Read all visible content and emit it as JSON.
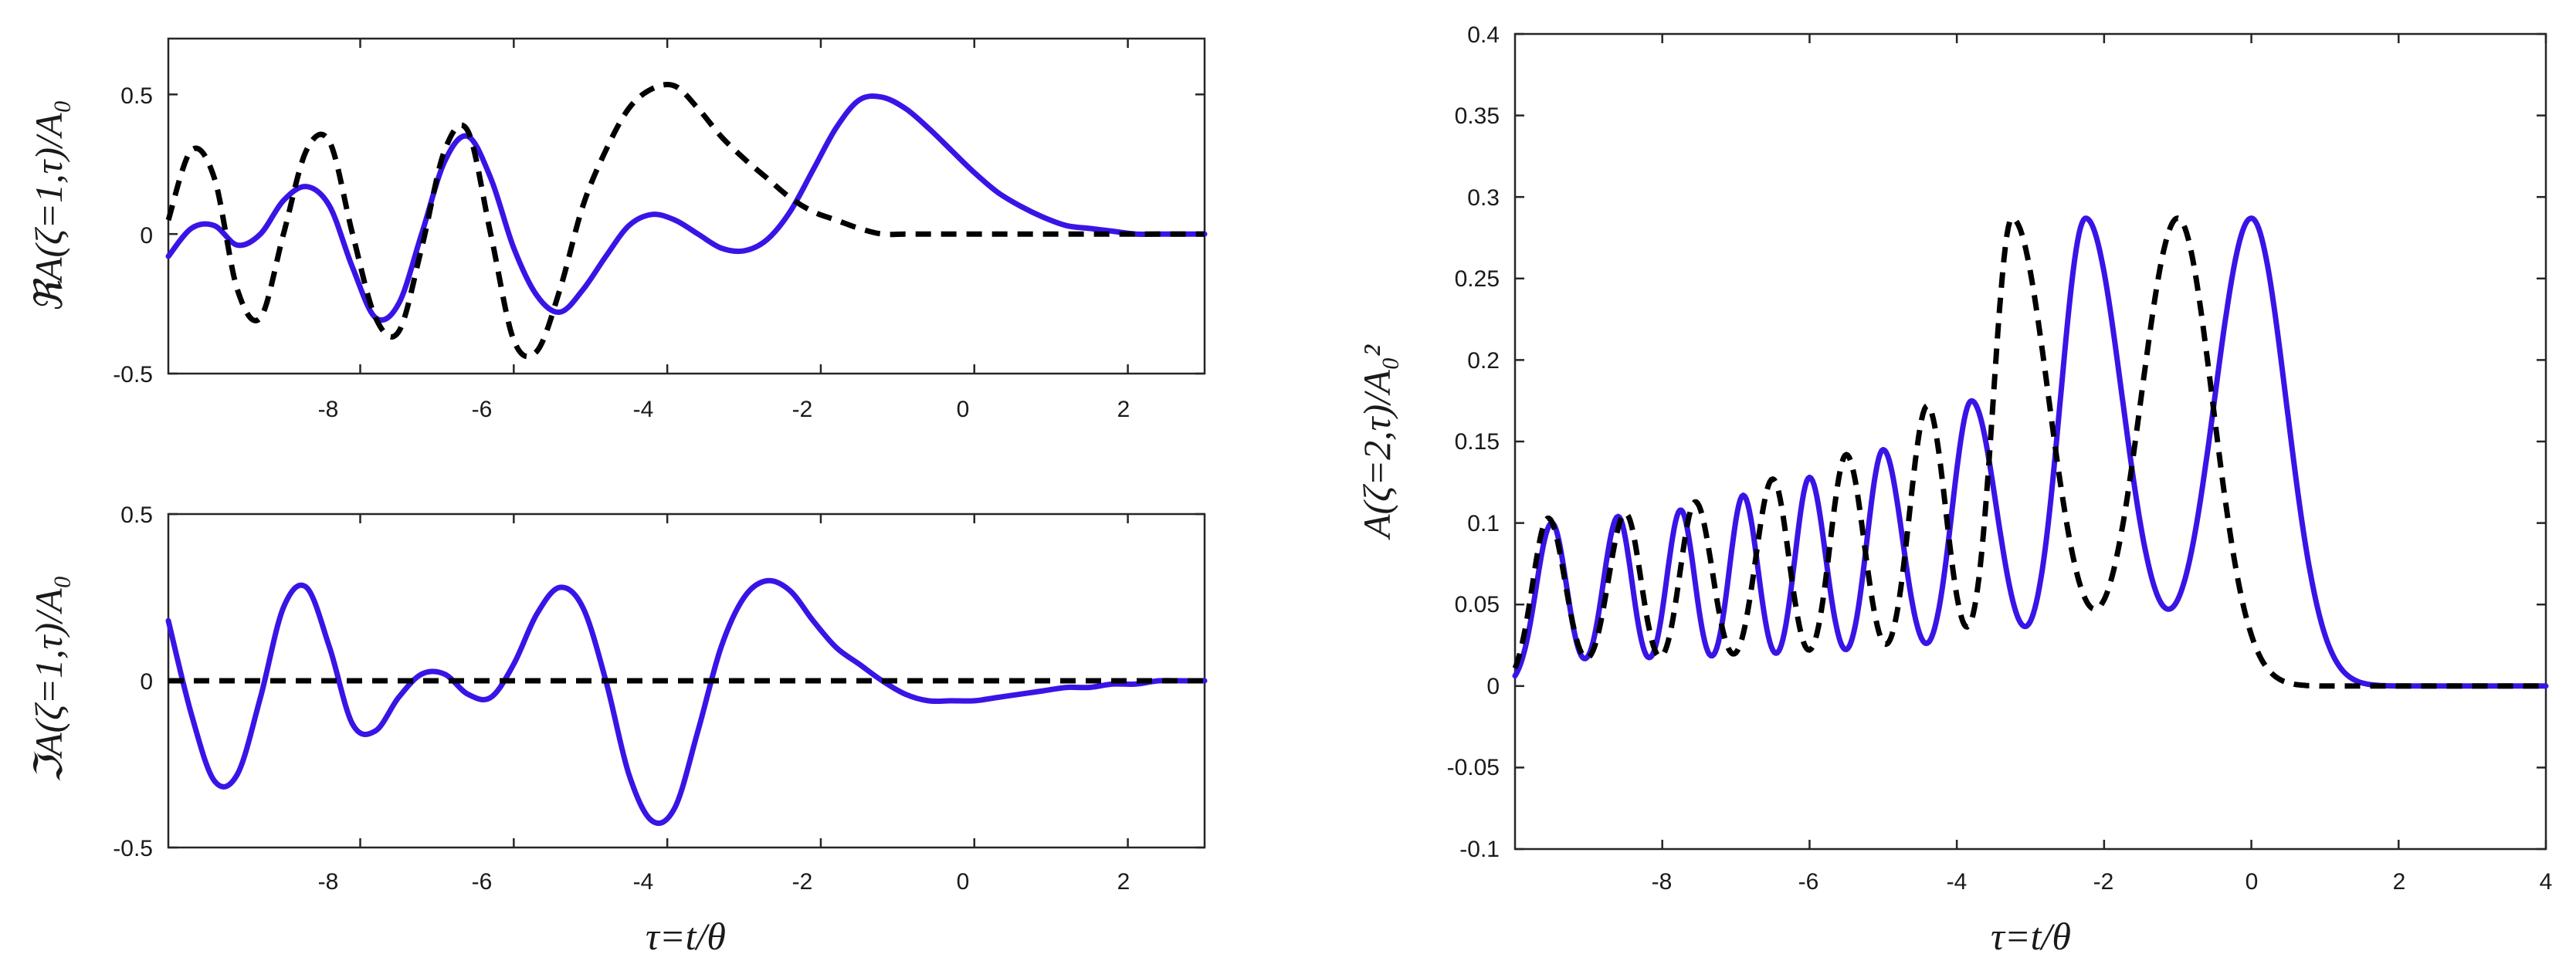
{
  "colors": {
    "solid_series": "#3a14e6",
    "dashed_series": "#000000",
    "axes": "#262626"
  },
  "chart_data": [
    {
      "id": "re",
      "type": "line",
      "ylabel": "ℜA(ζ=1,τ)/A₀",
      "xlabel": "",
      "xlim": [
        -10.5,
        3
      ],
      "ylim": [
        -0.5,
        0.7
      ],
      "xticks": [
        -8,
        -6,
        -4,
        -2,
        0,
        2
      ],
      "xtick_labels": [
        "-8",
        "-6",
        "-4",
        "-2",
        "0",
        "2"
      ],
      "yticks": [
        -0.5,
        0,
        0.5
      ],
      "ytick_labels": [
        "-0.5",
        "0",
        "0.5"
      ],
      "grid": false,
      "series": [
        {
          "style": "solid",
          "color": "#3a14e6",
          "x": [
            -10.5,
            -10.2,
            -9.9,
            -9.6,
            -9.3,
            -9.0,
            -8.7,
            -8.4,
            -8.1,
            -7.8,
            -7.5,
            -7.2,
            -6.9,
            -6.6,
            -6.3,
            -6.0,
            -5.7,
            -5.4,
            -5.1,
            -4.8,
            -4.5,
            -4.2,
            -3.9,
            -3.6,
            -3.3,
            -3.0,
            -2.7,
            -2.4,
            -2.1,
            -1.8,
            -1.5,
            -1.2,
            -0.9,
            -0.6,
            -0.3,
            0.0,
            0.3,
            0.6,
            0.9,
            1.2,
            1.5,
            1.8,
            2.1,
            2.4,
            2.7,
            3.0
          ],
          "y": [
            -0.08,
            0.02,
            0.03,
            -0.04,
            0.0,
            0.12,
            0.17,
            0.1,
            -0.12,
            -0.3,
            -0.25,
            0.0,
            0.26,
            0.35,
            0.2,
            -0.05,
            -0.22,
            -0.28,
            -0.2,
            -0.08,
            0.03,
            0.07,
            0.05,
            0.0,
            -0.05,
            -0.06,
            -0.02,
            0.08,
            0.23,
            0.38,
            0.48,
            0.49,
            0.45,
            0.38,
            0.3,
            0.22,
            0.15,
            0.1,
            0.06,
            0.03,
            0.02,
            0.01,
            0.0,
            0.0,
            0.0,
            0.0
          ]
        },
        {
          "style": "dashed",
          "color": "#000000",
          "x": [
            -10.5,
            -10.2,
            -9.9,
            -9.6,
            -9.3,
            -9.0,
            -8.7,
            -8.4,
            -8.1,
            -7.8,
            -7.5,
            -7.2,
            -6.9,
            -6.6,
            -6.3,
            -6.0,
            -5.7,
            -5.4,
            -5.1,
            -4.8,
            -4.5,
            -4.2,
            -3.9,
            -3.6,
            -3.3,
            -3.0,
            -2.7,
            -2.4,
            -2.1,
            -1.8,
            -1.5,
            -1.2,
            -0.9,
            -0.6,
            -0.3,
            0.0,
            0.3,
            0.6,
            0.9,
            1.2,
            1.5,
            1.8,
            2.1,
            2.4,
            2.7,
            3.0
          ],
          "y": [
            0.05,
            0.3,
            0.2,
            -0.2,
            -0.3,
            0.0,
            0.3,
            0.33,
            0.0,
            -0.3,
            -0.35,
            -0.05,
            0.3,
            0.37,
            0.0,
            -0.38,
            -0.42,
            -0.2,
            0.1,
            0.3,
            0.45,
            0.52,
            0.53,
            0.45,
            0.35,
            0.27,
            0.2,
            0.13,
            0.08,
            0.05,
            0.02,
            0.0,
            0.0,
            0.0,
            0.0,
            0.0,
            0.0,
            0.0,
            0.0,
            0.0,
            0.0,
            0.0,
            0.0,
            0.0,
            0.0,
            0.0
          ]
        }
      ]
    },
    {
      "id": "im",
      "type": "line",
      "ylabel": "ℑA(ζ=1,τ)/A₀",
      "xlabel": "τ=t/θ",
      "xlim": [
        -10.5,
        3
      ],
      "ylim": [
        -0.5,
        0.5
      ],
      "xticks": [
        -8,
        -6,
        -4,
        -2,
        0,
        2
      ],
      "xtick_labels": [
        "-8",
        "-6",
        "-4",
        "-2",
        "0",
        "2"
      ],
      "yticks": [
        -0.5,
        0,
        0.5
      ],
      "ytick_labels": [
        "-0.5",
        "0",
        "0.5"
      ],
      "grid": false,
      "series": [
        {
          "style": "solid",
          "color": "#3a14e6",
          "x": [
            -10.5,
            -10.2,
            -9.9,
            -9.6,
            -9.3,
            -9.0,
            -8.7,
            -8.4,
            -8.1,
            -7.8,
            -7.5,
            -7.2,
            -6.9,
            -6.6,
            -6.3,
            -6.0,
            -5.7,
            -5.4,
            -5.1,
            -4.8,
            -4.5,
            -4.2,
            -3.9,
            -3.6,
            -3.3,
            -3.0,
            -2.7,
            -2.4,
            -2.1,
            -1.8,
            -1.5,
            -1.2,
            -0.9,
            -0.6,
            -0.3,
            0.0,
            0.3,
            0.6,
            0.9,
            1.2,
            1.5,
            1.8,
            2.1,
            2.4,
            2.7,
            3.0
          ],
          "y": [
            0.18,
            -0.1,
            -0.3,
            -0.28,
            -0.05,
            0.22,
            0.28,
            0.1,
            -0.13,
            -0.15,
            -0.05,
            0.02,
            0.02,
            -0.04,
            -0.05,
            0.05,
            0.2,
            0.28,
            0.22,
            0.0,
            -0.28,
            -0.42,
            -0.38,
            -0.15,
            0.1,
            0.25,
            0.3,
            0.27,
            0.18,
            0.1,
            0.05,
            0.0,
            -0.04,
            -0.06,
            -0.06,
            -0.06,
            -0.05,
            -0.04,
            -0.03,
            -0.02,
            -0.02,
            -0.01,
            -0.01,
            0.0,
            0.0,
            0.0
          ]
        },
        {
          "style": "dashed",
          "color": "#000000",
          "x": [
            -10.5,
            3.0
          ],
          "y": [
            0,
            0
          ]
        }
      ]
    },
    {
      "id": "intensity",
      "type": "line",
      "ylabel": "A(ζ=2,τ)/A₀²",
      "xlabel": "τ=t/θ",
      "xlim": [
        -10,
        4
      ],
      "ylim": [
        -0.1,
        0.4
      ],
      "xticks": [
        -8,
        -6,
        -4,
        -2,
        0,
        2,
        4
      ],
      "xtick_labels": [
        "-8",
        "-6",
        "-4",
        "-2",
        "0",
        "2",
        "4"
      ],
      "yticks": [
        -0.1,
        -0.05,
        0,
        0.05,
        0.1,
        0.15,
        0.2,
        0.25,
        0.3,
        0.35,
        0.4
      ],
      "ytick_labels": [
        "-0.1",
        "-0.05",
        "0",
        "0.05",
        "0.1",
        "0.15",
        "0.2",
        "0.25",
        "0.3",
        "0.35",
        "0.4"
      ],
      "grid": false,
      "series": [
        {
          "style": "solid",
          "color": "#3a14e6",
          "peaks": [
            -9.5,
            -8.6,
            -7.75,
            -6.9,
            -6.0,
            -5.0,
            -3.8,
            -2.25,
            0.0
          ],
          "heights": [
            0.1,
            0.104,
            0.108,
            0.117,
            0.128,
            0.145,
            0.175,
            0.287,
            0.287
          ]
        },
        {
          "style": "dashed",
          "color": "#000000",
          "peaks": [
            -9.55,
            -8.5,
            -7.55,
            -6.5,
            -5.5,
            -4.4,
            -3.25,
            -1.0
          ],
          "heights": [
            0.103,
            0.106,
            0.113,
            0.127,
            0.142,
            0.172,
            0.287,
            0.287
          ]
        }
      ]
    }
  ]
}
